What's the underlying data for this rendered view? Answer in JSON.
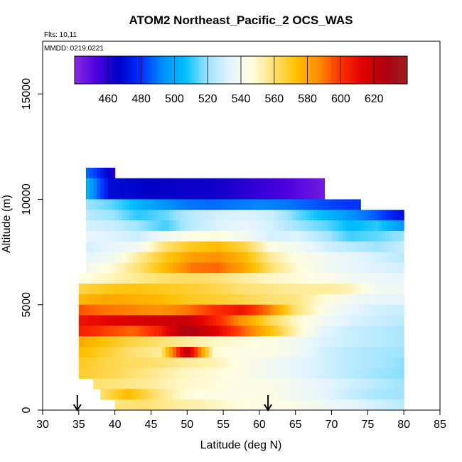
{
  "chart_data": {
    "type": "heatmap",
    "title": "ATOM2 Northeast_Pacific_2 OCS_WAS",
    "flights_label": "Flts: 10,11",
    "dates_label": "MMDD: 0219,0221",
    "xlabel": "Latitude (deg N)",
    "ylabel": "Altitude (m)",
    "xlim": [
      30,
      85
    ],
    "ylim": [
      0,
      17500
    ],
    "x_ticks": [
      30,
      35,
      40,
      45,
      50,
      55,
      60,
      65,
      70,
      75,
      80,
      85
    ],
    "y_ticks": [
      0,
      5000,
      10000,
      15000
    ],
    "colorbar": {
      "min": 440,
      "max": 640,
      "ticks": [
        460,
        480,
        500,
        520,
        540,
        560,
        580,
        600,
        620
      ],
      "colors": [
        "#8a2be2",
        "#4b00e0",
        "#0000c8",
        "#0030ff",
        "#0090ff",
        "#00c0ff",
        "#a0e4ff",
        "#e4f4ff",
        "#fffde0",
        "#ffe070",
        "#ffc000",
        "#ff8c00",
        "#ff3000",
        "#e00000",
        "#b00010",
        "#9a2020"
      ]
    },
    "profile_markers_lat": [
      34.8,
      61.2
    ],
    "bands": [
      {
        "alt_min": 11000,
        "alt_max": 11500,
        "lat_start": 36,
        "lat_end": 40,
        "values": [
          488,
          482,
          470,
          460
        ]
      },
      {
        "alt_min": 10000,
        "alt_max": 11000,
        "lat_start": 36,
        "lat_end": 69,
        "values": [
          505,
          470,
          468,
          466,
          465,
          465,
          462,
          458,
          455,
          450,
          445
        ]
      },
      {
        "alt_min": 9500,
        "alt_max": 10000,
        "lat_start": 36,
        "lat_end": 74,
        "values": [
          520,
          515,
          505,
          495,
          490,
          488,
          490,
          492,
          490,
          486,
          482,
          480
        ]
      },
      {
        "alt_min": 9000,
        "alt_max": 9500,
        "lat_start": 36,
        "lat_end": 80,
        "values": [
          525,
          520,
          510,
          515,
          525,
          530,
          532,
          528,
          515,
          505,
          495,
          485,
          470
        ]
      },
      {
        "alt_min": 8500,
        "alt_max": 9000,
        "lat_start": 36,
        "lat_end": 80,
        "values": [
          530,
          528,
          520,
          512,
          525,
          532,
          535,
          530,
          520,
          515,
          505,
          510,
          495
        ]
      },
      {
        "alt_min": 8000,
        "alt_max": 8500,
        "lat_start": 36,
        "lat_end": 80,
        "values": [
          535,
          532,
          528,
          540,
          545,
          548,
          540,
          530,
          532,
          522,
          512,
          515,
          520
        ]
      },
      {
        "alt_min": 7500,
        "alt_max": 8000,
        "lat_start": 36,
        "lat_end": 80,
        "values": [
          530,
          535,
          540,
          560,
          570,
          575,
          565,
          545,
          540,
          530,
          525,
          520,
          528
        ]
      },
      {
        "alt_min": 7000,
        "alt_max": 7500,
        "lat_start": 36,
        "lat_end": 80,
        "values": [
          535,
          540,
          555,
          570,
          582,
          585,
          575,
          555,
          545,
          540,
          535,
          530,
          525
        ]
      },
      {
        "alt_min": 6500,
        "alt_max": 7000,
        "lat_start": 36,
        "lat_end": 80,
        "values": [
          540,
          548,
          560,
          575,
          590,
          592,
          580,
          560,
          548,
          540,
          535,
          532,
          530
        ]
      },
      {
        "alt_min": 6000,
        "alt_max": 6500,
        "lat_start": 35,
        "lat_end": 80,
        "values": [
          545,
          550,
          555,
          560,
          562,
          560,
          555,
          550,
          548,
          545,
          540,
          538,
          535
        ]
      },
      {
        "alt_min": 5500,
        "alt_max": 6000,
        "lat_start": 35,
        "lat_end": 80,
        "values": [
          565,
          570,
          572,
          570,
          568,
          565,
          560,
          558,
          555,
          555,
          552,
          540,
          538
        ]
      },
      {
        "alt_min": 5000,
        "alt_max": 5500,
        "lat_start": 35,
        "lat_end": 80,
        "values": [
          575,
          580,
          578,
          575,
          570,
          568,
          565,
          560,
          558,
          548,
          540,
          535,
          535
        ]
      },
      {
        "alt_min": 4500,
        "alt_max": 5000,
        "lat_start": 35,
        "lat_end": 80,
        "values": [
          595,
          590,
          588,
          585,
          590,
          600,
          608,
          590,
          560,
          545,
          535,
          530,
          528
        ]
      },
      {
        "alt_min": 4000,
        "alt_max": 4500,
        "lat_start": 35,
        "lat_end": 80,
        "values": [
          608,
          612,
          615,
          618,
          620,
          605,
          585,
          565,
          550,
          540,
          532,
          528,
          525
        ]
      },
      {
        "alt_min": 3500,
        "alt_max": 4000,
        "lat_start": 35,
        "lat_end": 80,
        "values": [
          605,
          598,
          592,
          605,
          630,
          615,
          595,
          575,
          552,
          535,
          528,
          525,
          522
        ]
      },
      {
        "alt_min": 3000,
        "alt_max": 3500,
        "lat_start": 35,
        "lat_end": 80,
        "values": [
          580,
          572,
          565,
          560,
          555,
          550,
          548,
          545,
          540,
          532,
          528,
          525,
          522
        ]
      },
      {
        "alt_min": 2500,
        "alt_max": 3000,
        "lat_start": 35,
        "lat_end": 80,
        "values": [
          575,
          568,
          560,
          555,
          625,
          548,
          545,
          545,
          540,
          530,
          525,
          522,
          520
        ]
      },
      {
        "alt_min": 2000,
        "alt_max": 2500,
        "lat_start": 35,
        "lat_end": 80,
        "values": [
          570,
          565,
          562,
          560,
          555,
          552,
          545,
          540,
          535,
          530,
          525,
          522,
          518
        ]
      },
      {
        "alt_min": 1500,
        "alt_max": 2000,
        "lat_start": 35,
        "lat_end": 80,
        "values": [
          568,
          565,
          560,
          555,
          550,
          548,
          545,
          540,
          535,
          530,
          525,
          520,
          518
        ]
      },
      {
        "alt_min": 1000,
        "alt_max": 1500,
        "lat_start": 37,
        "lat_end": 80,
        "values": [
          560,
          558,
          555,
          550,
          548,
          545,
          545,
          540,
          535,
          530,
          525,
          520
        ]
      },
      {
        "alt_min": 500,
        "alt_max": 1000,
        "lat_start": 38,
        "lat_end": 80,
        "values": [
          560,
          575,
          560,
          548,
          545,
          545,
          545,
          540,
          535,
          528,
          522,
          520
        ]
      },
      {
        "alt_min": 0,
        "alt_max": 500,
        "lat_start": 40,
        "lat_end": 80,
        "values": [
          558,
          560,
          555,
          552,
          548,
          545,
          545,
          540,
          535,
          530,
          525
        ]
      }
    ]
  }
}
